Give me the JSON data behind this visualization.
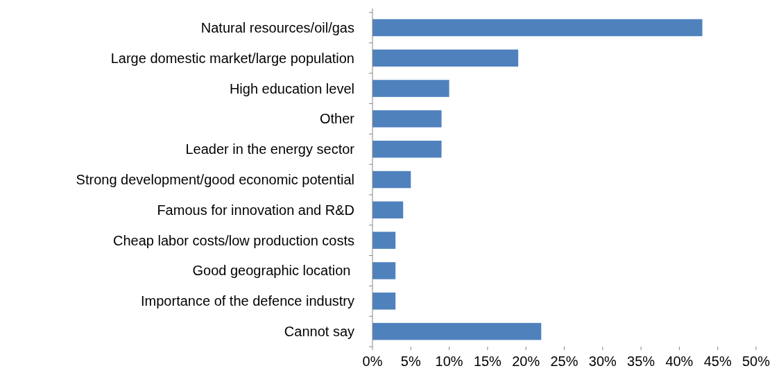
{
  "chart_data": {
    "type": "bar",
    "orientation": "horizontal",
    "categories": [
      "Natural resources/oil/gas",
      "Large domestic market/large population",
      "High education level",
      "Other",
      "Leader in the energy sector",
      "Strong development/good economic potential",
      "Famous for innovation and R&D",
      "Cheap labor costs/low production costs",
      "Good geographic location ",
      "Importance of the defence industry",
      "Cannot say"
    ],
    "values": [
      43,
      19,
      10,
      9,
      9,
      5,
      4,
      3,
      3,
      3,
      22
    ],
    "color": "#4f81bd",
    "xlim": [
      0,
      50
    ],
    "xticks": [
      {
        "value": 0,
        "label": "0%"
      },
      {
        "value": 5,
        "label": "5%"
      },
      {
        "value": 10,
        "label": "10%"
      },
      {
        "value": 15,
        "label": "15%"
      },
      {
        "value": 20,
        "label": "20%"
      },
      {
        "value": 25,
        "label": "25%"
      },
      {
        "value": 30,
        "label": "30%"
      },
      {
        "value": 35,
        "label": "35%"
      },
      {
        "value": 40,
        "label": "40%"
      },
      {
        "value": 45,
        "label": "45%"
      },
      {
        "value": 50,
        "label": "50%"
      }
    ],
    "grid": false
  }
}
